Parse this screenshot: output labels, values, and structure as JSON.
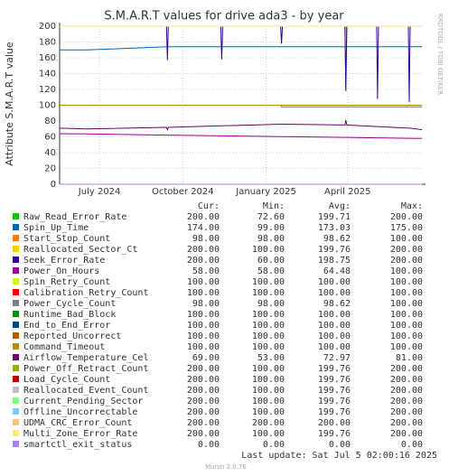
{
  "chart_data": {
    "type": "line",
    "title": "S.M.A.R.T values for drive ada3 - by year",
    "y_label": "Attribute S.M.A.R.T value",
    "side_note": "RRDTOOL / TOBI OETIKER",
    "last_update": "Last update:  Sat Jul  5 02:00:16 2025",
    "footer": "Munin 2.0.76",
    "stat_headers": [
      "Cur:",
      "Min:",
      "Avg:",
      "Max:"
    ],
    "grid": true,
    "xlim": [
      0,
      400
    ],
    "xticks": [
      {
        "value": 44,
        "label": "July 2024"
      },
      {
        "value": 136,
        "label": "October 2024"
      },
      {
        "value": 228,
        "label": "January 2025"
      },
      {
        "value": 318,
        "label": "April 2025"
      }
    ],
    "ylim": [
      0,
      200
    ],
    "yticks": [
      0,
      20,
      40,
      60,
      80,
      100,
      120,
      140,
      160,
      180,
      200
    ],
    "x": [
      0,
      30,
      118,
      119,
      120,
      178,
      179,
      180,
      244,
      245,
      246,
      315,
      316,
      317,
      350,
      351,
      352,
      385,
      386,
      387,
      400
    ],
    "series": [
      {
        "name": "Raw_Read_Error_Rate",
        "color": "#00cc00",
        "stats": [
          "200.00",
          "72.60",
          "199.71",
          "200.00"
        ],
        "values": [
          200,
          200,
          200,
          200,
          200,
          200,
          200,
          200,
          200,
          200,
          200,
          200,
          120,
          200,
          200,
          200,
          200,
          200,
          200,
          200,
          200
        ]
      },
      {
        "name": "Spin_Up_Time",
        "color": "#0066b3",
        "stats": [
          "174.00",
          "99.00",
          "173.03",
          "175.00"
        ],
        "values": [
          170,
          170,
          174,
          174,
          174,
          174,
          174,
          174,
          174,
          174,
          174,
          174,
          174,
          174,
          174,
          174,
          174,
          174,
          174,
          174,
          174
        ]
      },
      {
        "name": "Start_Stop_Count",
        "color": "#ff8000",
        "stats": [
          "98.00",
          "98.00",
          "98.62",
          "100.00"
        ],
        "values": [
          100,
          100,
          100,
          100,
          100,
          100,
          100,
          100,
          100,
          98,
          98,
          98,
          98,
          98,
          98,
          98,
          98,
          98,
          98,
          98,
          98
        ]
      },
      {
        "name": "Reallocated_Sector_Ct",
        "color": "#ffcc00",
        "stats": [
          "200.00",
          "100.00",
          "199.76",
          "200.00"
        ],
        "values": [
          200,
          200,
          200,
          200,
          200,
          200,
          200,
          200,
          200,
          200,
          200,
          200,
          130,
          200,
          200,
          200,
          200,
          200,
          200,
          200,
          200
        ]
      },
      {
        "name": "Seek_Error_Rate",
        "color": "#330099",
        "stats": [
          "200.00",
          "60.00",
          "198.75",
          "200.00"
        ],
        "values": [
          200,
          200,
          200,
          157,
          200,
          200,
          158,
          200,
          200,
          178,
          200,
          200,
          118,
          200,
          200,
          108,
          200,
          200,
          104,
          200,
          200
        ]
      },
      {
        "name": "Power_On_Hours",
        "color": "#990099",
        "stats": [
          "58.00",
          "58.00",
          "64.48",
          "100.00"
        ],
        "values": [
          64,
          63.6,
          62.2,
          62.2,
          62.2,
          61.3,
          61.3,
          61.3,
          60.3,
          60.3,
          60.3,
          59.3,
          59.3,
          59.3,
          58.8,
          58.8,
          58.8,
          58.2,
          58.2,
          58.2,
          58
        ]
      },
      {
        "name": "Spin_Retry_Count",
        "color": "#ccff00",
        "stats": [
          "100.00",
          "100.00",
          "100.00",
          "100.00"
        ],
        "values": [
          100,
          100,
          100,
          100,
          100,
          100,
          100,
          100,
          100,
          100,
          100,
          100,
          100,
          100,
          100,
          100,
          100,
          100,
          100,
          100,
          100
        ]
      },
      {
        "name": "Calibration_Retry_Count",
        "color": "#ff0000",
        "stats": [
          "100.00",
          "100.00",
          "100.00",
          "100.00"
        ],
        "values": [
          100,
          100,
          100,
          100,
          100,
          100,
          100,
          100,
          100,
          100,
          100,
          100,
          100,
          100,
          100,
          100,
          100,
          100,
          100,
          100,
          100
        ]
      },
      {
        "name": "Power_Cycle_Count",
        "color": "#808080",
        "stats": [
          "98.00",
          "98.00",
          "98.62",
          "100.00"
        ],
        "values": [
          100,
          100,
          100,
          100,
          100,
          100,
          100,
          100,
          100,
          98,
          98,
          98,
          98,
          98,
          98,
          98,
          98,
          98,
          98,
          98,
          98
        ]
      },
      {
        "name": "Runtime_Bad_Block",
        "color": "#008f00",
        "stats": [
          "100.00",
          "100.00",
          "100.00",
          "100.00"
        ],
        "values": [
          100,
          100,
          100,
          100,
          100,
          100,
          100,
          100,
          100,
          100,
          100,
          100,
          100,
          100,
          100,
          100,
          100,
          100,
          100,
          100,
          100
        ]
      },
      {
        "name": "End_to_End_Error",
        "color": "#00487d",
        "stats": [
          "100.00",
          "100.00",
          "100.00",
          "100.00"
        ],
        "values": [
          100,
          100,
          100,
          100,
          100,
          100,
          100,
          100,
          100,
          100,
          100,
          100,
          100,
          100,
          100,
          100,
          100,
          100,
          100,
          100,
          100
        ]
      },
      {
        "name": "Reported_Uncorrect",
        "color": "#b35a00",
        "stats": [
          "100.00",
          "100.00",
          "100.00",
          "100.00"
        ],
        "values": [
          100,
          100,
          100,
          100,
          100,
          100,
          100,
          100,
          100,
          100,
          100,
          100,
          100,
          100,
          100,
          100,
          100,
          100,
          100,
          100,
          100
        ]
      },
      {
        "name": "Command_Timeout",
        "color": "#b38f00",
        "stats": [
          "100.00",
          "100.00",
          "100.00",
          "100.00"
        ],
        "values": [
          100,
          100,
          100,
          100,
          100,
          100,
          100,
          100,
          100,
          100,
          100,
          100,
          100,
          100,
          100,
          100,
          100,
          100,
          100,
          100,
          100
        ]
      },
      {
        "name": "Airflow_Temperature_Cel",
        "color": "#6b006b",
        "stats": [
          "69.00",
          "53.00",
          "72.97",
          "81.00"
        ],
        "values": [
          71,
          70,
          72,
          69,
          72,
          74,
          74,
          74,
          76,
          76,
          76,
          75,
          81,
          75,
          73,
          73,
          73,
          71,
          71,
          71,
          69
        ]
      },
      {
        "name": "Power_Off_Retract_Count",
        "color": "#8fb300",
        "stats": [
          "200.00",
          "100.00",
          "199.76",
          "200.00"
        ],
        "values": [
          200,
          200,
          200,
          200,
          200,
          200,
          200,
          200,
          200,
          200,
          200,
          200,
          200,
          200,
          200,
          200,
          200,
          200,
          200,
          200,
          200
        ]
      },
      {
        "name": "Load_Cycle_Count",
        "color": "#b30000",
        "stats": [
          "200.00",
          "100.00",
          "199.76",
          "200.00"
        ],
        "values": [
          200,
          200,
          200,
          200,
          200,
          200,
          200,
          200,
          200,
          200,
          200,
          200,
          200,
          200,
          200,
          200,
          200,
          200,
          200,
          200,
          200
        ]
      },
      {
        "name": "Reallocated_Event_Count",
        "color": "#bebebe",
        "stats": [
          "200.00",
          "100.00",
          "199.76",
          "200.00"
        ],
        "values": [
          200,
          200,
          200,
          200,
          200,
          200,
          200,
          200,
          200,
          200,
          200,
          200,
          200,
          200,
          200,
          200,
          200,
          200,
          200,
          200,
          200
        ]
      },
      {
        "name": "Current_Pending_Sector",
        "color": "#80ff80",
        "stats": [
          "200.00",
          "100.00",
          "199.76",
          "200.00"
        ],
        "values": [
          200,
          200,
          200,
          200,
          200,
          200,
          200,
          200,
          200,
          200,
          200,
          200,
          200,
          200,
          200,
          200,
          200,
          200,
          200,
          200,
          200
        ]
      },
      {
        "name": "Offline_Uncorrectable",
        "color": "#80c9ff",
        "stats": [
          "200.00",
          "100.00",
          "199.76",
          "200.00"
        ],
        "values": [
          200,
          200,
          200,
          200,
          200,
          200,
          200,
          200,
          200,
          200,
          200,
          200,
          200,
          200,
          200,
          200,
          200,
          200,
          200,
          200,
          200
        ]
      },
      {
        "name": "UDMA_CRC_Error_Count",
        "color": "#ffc080",
        "stats": [
          "200.00",
          "200.00",
          "200.00",
          "200.00"
        ],
        "values": [
          200,
          200,
          200,
          200,
          200,
          200,
          200,
          200,
          200,
          200,
          200,
          200,
          200,
          200,
          200,
          200,
          200,
          200,
          200,
          200,
          200
        ]
      },
      {
        "name": "Multi_Zone_Error_Rate",
        "color": "#ffe680",
        "stats": [
          "200.00",
          "100.00",
          "199.76",
          "200.00"
        ],
        "values": [
          200,
          200,
          200,
          200,
          200,
          200,
          200,
          200,
          200,
          200,
          200,
          200,
          200,
          200,
          200,
          200,
          200,
          200,
          200,
          200,
          200
        ]
      },
      {
        "name": "smartctl_exit_status",
        "color": "#aa80ff",
        "stats": [
          "0.00",
          "0.00",
          "0.00",
          "0.00"
        ],
        "values": [
          0,
          0,
          0,
          0,
          0,
          0,
          0,
          0,
          0,
          0,
          0,
          0,
          0,
          0,
          0,
          0,
          0,
          0,
          0,
          0,
          0
        ]
      }
    ]
  }
}
